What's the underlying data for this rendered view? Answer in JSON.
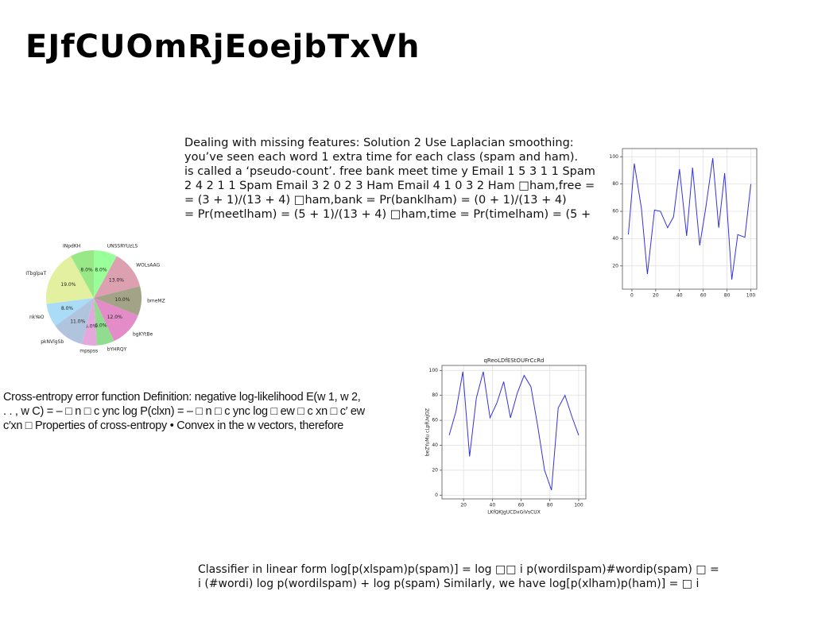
{
  "title": "EJfCUOmRjEoejbTxVh",
  "texts": [
    [
      "Dealing with missing features: Solution 2 Use Laplacian smoothing:",
      "you’ve seen each word 1 extra time for each class (spam and ham).",
      "is called a ‘pseudo-count’. free bank meet time y Email 1 5 3 1 1 Spam",
      "2 4 2 1 1 Spam Email 3 2 0 2 3 Ham Email 4 1 0 3 2 Ham □ham,free =",
      "= (3 + 1)/(13 + 4) □ham,bank = Pr(banklham) = (0 + 1)/(13 + 4)",
      "= Pr(meetlham) = (5 + 1)/(13 + 4) □ham,time = Pr(timelham) = (5 +"
    ],
    [
      "Cross-entropy error function Definition: negative log-likelihood E(w 1, w 2,",
      ". . , w C) = – □ n □ c ync log P(clxn) = – □ n □ c ync log □ ew □ c xn □ c′ ew",
      "c′xn □ Properties of cross-entropy • Convex in the w vectors, therefore"
    ],
    [
      "Classifier in linear form log[p(xlspam)p(spam)] = log □□ i p(wordilspam)#wordip(spam) □ =",
      "i (#wordi) log p(wordilspam) + log p(spam) Similarly, we have log[p(xlham)p(ham)] = □ i"
    ]
  ],
  "chart_data": [
    {
      "type": "pie",
      "categories": [
        "UNSSRYUzLS",
        "WOLsAAG",
        "bmeMZ",
        "bgKYtBe",
        "bYHRQY",
        "mpspss",
        "pkNVlgSb",
        "nkYeO",
        "ITbglpaT",
        "INpdKH"
      ],
      "values": [
        8,
        13,
        10,
        12,
        6,
        5,
        11,
        8,
        19,
        8
      ],
      "value_labels": [
        "8.0%",
        "13.0%",
        "10.0%",
        "12.0%",
        "6.0%",
        "5.0%",
        "11.0%",
        "8.0%",
        "19.0%",
        "8.0%"
      ],
      "colors": [
        "#99ff99",
        "#dda0b0",
        "#a3a388",
        "#e38cc8",
        "#90dd90",
        "#e5a8dd",
        "#b0c4de",
        "#aadcf8",
        "#e3f0a0",
        "#98e888"
      ]
    },
    {
      "type": "line",
      "x": [
        -3,
        2,
        8,
        13,
        19,
        24,
        30,
        35,
        40,
        46,
        51,
        57,
        62,
        68,
        73,
        78,
        84,
        89,
        95,
        100
      ],
      "series": [
        {
          "color": "#3333dd",
          "values": [
            43,
            95,
            62,
            14,
            61,
            60,
            48,
            56,
            91,
            42,
            92,
            35,
            62,
            99,
            48,
            88,
            10,
            43,
            41,
            80
          ]
        }
      ],
      "xlim": [
        -8,
        105
      ],
      "ylim": [
        3,
        106
      ],
      "xticks": [
        0,
        20,
        40,
        60,
        80,
        100
      ],
      "yticks": [
        20,
        40,
        60,
        80,
        100
      ],
      "grid": true
    },
    {
      "type": "line",
      "title": "qReoLDfEStOUFrCcRd",
      "x_label": "LKfQKJgUCDxGiVsCUX",
      "y_label": "beZYuMu cLpfUxjOZ",
      "x": [
        10,
        14.7,
        19.5,
        24.2,
        28.9,
        33.7,
        38.4,
        43.2,
        47.9,
        52.6,
        57.4,
        62.1,
        66.8,
        71.6,
        76.3,
        81.1,
        85.8,
        90.5,
        95.3,
        100
      ],
      "series": [
        {
          "color": "#3333dd",
          "values": [
            48,
            67,
            99,
            31,
            78,
            99,
            62,
            74,
            91,
            62,
            82,
            96,
            87,
            55,
            20,
            4,
            70,
            80,
            63,
            48
          ]
        }
      ],
      "xlim": [
        5,
        105
      ],
      "ylim": [
        -3,
        104
      ],
      "xticks": [
        20,
        40,
        60,
        80,
        100
      ],
      "yticks": [
        0,
        20,
        40,
        60,
        80,
        100
      ],
      "grid": true
    }
  ]
}
